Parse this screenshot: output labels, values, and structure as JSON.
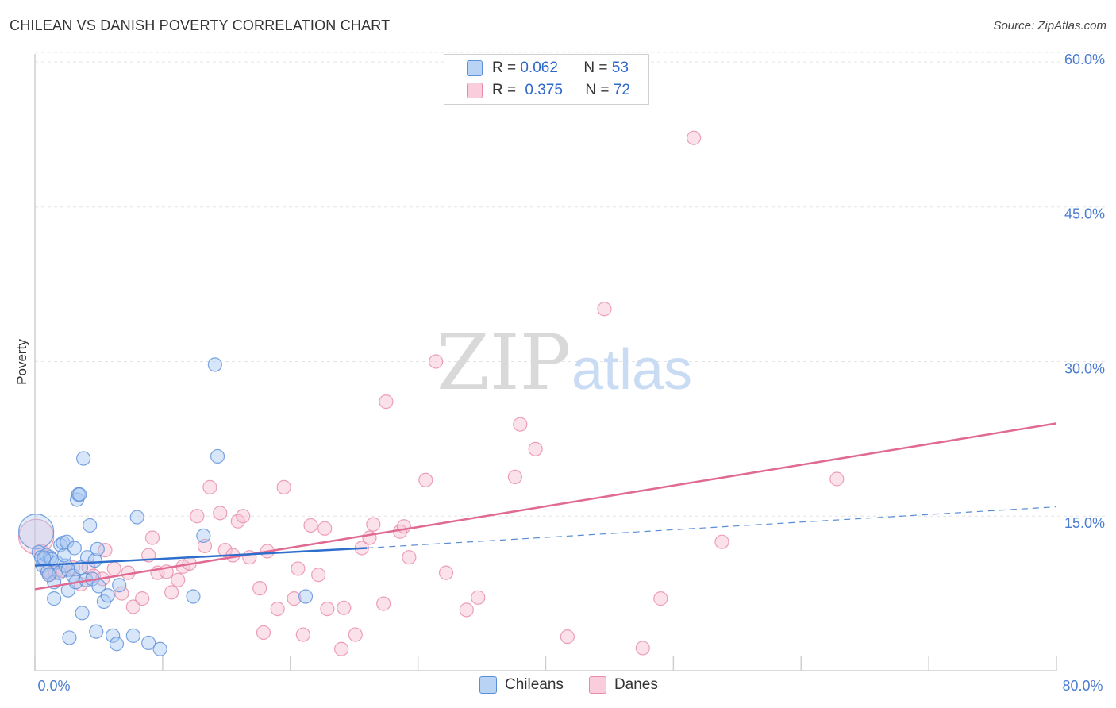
{
  "title": "CHILEAN VS DANISH POVERTY CORRELATION CHART",
  "source": "Source: ZipAtlas.com",
  "watermark": {
    "zip": "ZIP",
    "atlas": "atlas"
  },
  "legend": {
    "rows": [
      {
        "r_label": "R =",
        "r_value": "0.062",
        "n_label": "N =",
        "n_value": "53"
      },
      {
        "r_label": "R =",
        "r_value": "0.375",
        "n_label": "N =",
        "n_value": "72"
      }
    ]
  },
  "bottom_legend": {
    "chileans": "Chileans",
    "danes": "Danes"
  },
  "colors": {
    "blue_fill": "#a9c8f2",
    "blue_stroke": "#5b8fd9",
    "blue_line": "#2e6fcc",
    "pink_fill": "#f7bfd0",
    "pink_stroke": "#e98aa8",
    "pink_line": "#e06a93",
    "tick_text": "#4a7cd1"
  },
  "chart_data": {
    "type": "scatter",
    "title": "CHILEAN VS DANISH POVERTY CORRELATION CHART",
    "xlabel": "",
    "ylabel": "Poverty",
    "xlim": [
      0,
      80
    ],
    "ylim": [
      0,
      62
    ],
    "x_tick_labels": [
      "0.0%",
      "80.0%"
    ],
    "y_ticks": [
      15,
      30,
      45,
      60
    ],
    "y_tick_labels": [
      "15.0%",
      "30.0%",
      "45.0%",
      "60.0%"
    ],
    "series": [
      {
        "name": "Chileans",
        "r": 0.062,
        "n": 53,
        "trend_solid": {
          "x": [
            0,
            26
          ],
          "y": [
            10.2,
            11.9
          ]
        },
        "trend_dashed": {
          "x": [
            26,
            80
          ],
          "y": [
            11.9,
            15.9
          ]
        },
        "points": [
          {
            "x": 0.1,
            "y": 13.5,
            "big": true
          },
          {
            "x": 0.3,
            "y": 11.5
          },
          {
            "x": 0.5,
            "y": 11.0
          },
          {
            "x": 0.6,
            "y": 10.2
          },
          {
            "x": 0.9,
            "y": 11.2
          },
          {
            "x": 1.0,
            "y": 9.6
          },
          {
            "x": 1.2,
            "y": 11.0
          },
          {
            "x": 1.3,
            "y": 10.8
          },
          {
            "x": 1.5,
            "y": 8.6
          },
          {
            "x": 1.5,
            "y": 7.0
          },
          {
            "x": 1.7,
            "y": 10.5
          },
          {
            "x": 1.9,
            "y": 9.5
          },
          {
            "x": 2.0,
            "y": 12.2
          },
          {
            "x": 2.2,
            "y": 12.4
          },
          {
            "x": 2.4,
            "y": 10.2
          },
          {
            "x": 2.5,
            "y": 12.5
          },
          {
            "x": 2.6,
            "y": 9.8
          },
          {
            "x": 2.6,
            "y": 7.8
          },
          {
            "x": 2.7,
            "y": 3.2
          },
          {
            "x": 3.0,
            "y": 9.2
          },
          {
            "x": 3.1,
            "y": 11.9
          },
          {
            "x": 3.2,
            "y": 8.6
          },
          {
            "x": 3.3,
            "y": 16.6
          },
          {
            "x": 3.4,
            "y": 17.1
          },
          {
            "x": 3.5,
            "y": 17.1
          },
          {
            "x": 3.7,
            "y": 5.6
          },
          {
            "x": 3.8,
            "y": 20.6
          },
          {
            "x": 4.0,
            "y": 8.8
          },
          {
            "x": 4.1,
            "y": 11.0
          },
          {
            "x": 4.3,
            "y": 14.1
          },
          {
            "x": 4.5,
            "y": 8.9
          },
          {
            "x": 4.7,
            "y": 10.7
          },
          {
            "x": 4.8,
            "y": 3.8
          },
          {
            "x": 4.9,
            "y": 11.8
          },
          {
            "x": 5.0,
            "y": 8.2
          },
          {
            "x": 5.4,
            "y": 6.7
          },
          {
            "x": 5.7,
            "y": 7.3
          },
          {
            "x": 6.1,
            "y": 3.4
          },
          {
            "x": 6.4,
            "y": 2.6
          },
          {
            "x": 6.6,
            "y": 8.3
          },
          {
            "x": 7.7,
            "y": 3.4
          },
          {
            "x": 8.0,
            "y": 14.9
          },
          {
            "x": 8.9,
            "y": 2.7
          },
          {
            "x": 9.8,
            "y": 2.1
          },
          {
            "x": 12.4,
            "y": 7.2
          },
          {
            "x": 13.2,
            "y": 13.1
          },
          {
            "x": 14.1,
            "y": 29.7
          },
          {
            "x": 14.3,
            "y": 20.8
          },
          {
            "x": 21.2,
            "y": 7.2
          },
          {
            "x": 2.3,
            "y": 11.2
          },
          {
            "x": 1.1,
            "y": 9.3
          },
          {
            "x": 3.6,
            "y": 10.0
          },
          {
            "x": 0.7,
            "y": 10.9
          }
        ]
      },
      {
        "name": "Danes",
        "r": 0.375,
        "n": 72,
        "trend_solid": {
          "x": [
            0,
            80
          ],
          "y": [
            7.9,
            24.0
          ]
        },
        "points": [
          {
            "x": 0.1,
            "y": 13.0,
            "big": true
          },
          {
            "x": 0.5,
            "y": 11.6
          },
          {
            "x": 0.9,
            "y": 9.8
          },
          {
            "x": 1.2,
            "y": 9.4
          },
          {
            "x": 1.6,
            "y": 9.5
          },
          {
            "x": 2.2,
            "y": 9.7
          },
          {
            "x": 3.0,
            "y": 10.0
          },
          {
            "x": 3.6,
            "y": 8.4
          },
          {
            "x": 4.2,
            "y": 10.0
          },
          {
            "x": 4.6,
            "y": 9.2
          },
          {
            "x": 5.3,
            "y": 8.9
          },
          {
            "x": 5.5,
            "y": 11.7
          },
          {
            "x": 6.2,
            "y": 9.9
          },
          {
            "x": 6.8,
            "y": 7.5
          },
          {
            "x": 7.3,
            "y": 9.5
          },
          {
            "x": 7.7,
            "y": 6.2
          },
          {
            "x": 8.4,
            "y": 7.0
          },
          {
            "x": 8.9,
            "y": 11.2
          },
          {
            "x": 9.2,
            "y": 12.9
          },
          {
            "x": 9.6,
            "y": 9.5
          },
          {
            "x": 10.3,
            "y": 9.6
          },
          {
            "x": 10.7,
            "y": 7.6
          },
          {
            "x": 11.2,
            "y": 8.8
          },
          {
            "x": 11.6,
            "y": 10.1
          },
          {
            "x": 12.1,
            "y": 10.4
          },
          {
            "x": 12.7,
            "y": 15.0
          },
          {
            "x": 13.3,
            "y": 12.1
          },
          {
            "x": 13.7,
            "y": 17.8
          },
          {
            "x": 14.5,
            "y": 15.3
          },
          {
            "x": 14.9,
            "y": 11.7
          },
          {
            "x": 15.5,
            "y": 11.2
          },
          {
            "x": 15.9,
            "y": 14.5
          },
          {
            "x": 16.3,
            "y": 15.0
          },
          {
            "x": 16.8,
            "y": 11.0
          },
          {
            "x": 17.6,
            "y": 8.0
          },
          {
            "x": 17.9,
            "y": 3.7
          },
          {
            "x": 18.2,
            "y": 11.6
          },
          {
            "x": 19.0,
            "y": 6.0
          },
          {
            "x": 19.5,
            "y": 17.8
          },
          {
            "x": 20.3,
            "y": 7.0
          },
          {
            "x": 20.6,
            "y": 9.9
          },
          {
            "x": 21.0,
            "y": 3.5
          },
          {
            "x": 21.6,
            "y": 14.1
          },
          {
            "x": 22.2,
            "y": 9.3
          },
          {
            "x": 22.7,
            "y": 13.8
          },
          {
            "x": 22.9,
            "y": 6.0
          },
          {
            "x": 24.0,
            "y": 2.1
          },
          {
            "x": 24.2,
            "y": 6.1
          },
          {
            "x": 25.1,
            "y": 3.5
          },
          {
            "x": 25.6,
            "y": 11.9
          },
          {
            "x": 26.2,
            "y": 12.9
          },
          {
            "x": 26.5,
            "y": 14.2
          },
          {
            "x": 27.3,
            "y": 6.5
          },
          {
            "x": 27.5,
            "y": 26.1
          },
          {
            "x": 28.6,
            "y": 13.5
          },
          {
            "x": 28.9,
            "y": 14.0
          },
          {
            "x": 29.3,
            "y": 11.0
          },
          {
            "x": 30.6,
            "y": 18.5
          },
          {
            "x": 31.4,
            "y": 30.0
          },
          {
            "x": 32.2,
            "y": 9.5
          },
          {
            "x": 33.8,
            "y": 5.9
          },
          {
            "x": 34.7,
            "y": 7.1
          },
          {
            "x": 37.6,
            "y": 18.8
          },
          {
            "x": 38.0,
            "y": 23.9
          },
          {
            "x": 39.2,
            "y": 21.5
          },
          {
            "x": 41.7,
            "y": 3.3
          },
          {
            "x": 44.6,
            "y": 35.1
          },
          {
            "x": 47.6,
            "y": 2.2
          },
          {
            "x": 49.0,
            "y": 7.0
          },
          {
            "x": 51.6,
            "y": 51.7
          },
          {
            "x": 53.8,
            "y": 12.5
          },
          {
            "x": 62.8,
            "y": 18.6
          }
        ]
      }
    ]
  }
}
